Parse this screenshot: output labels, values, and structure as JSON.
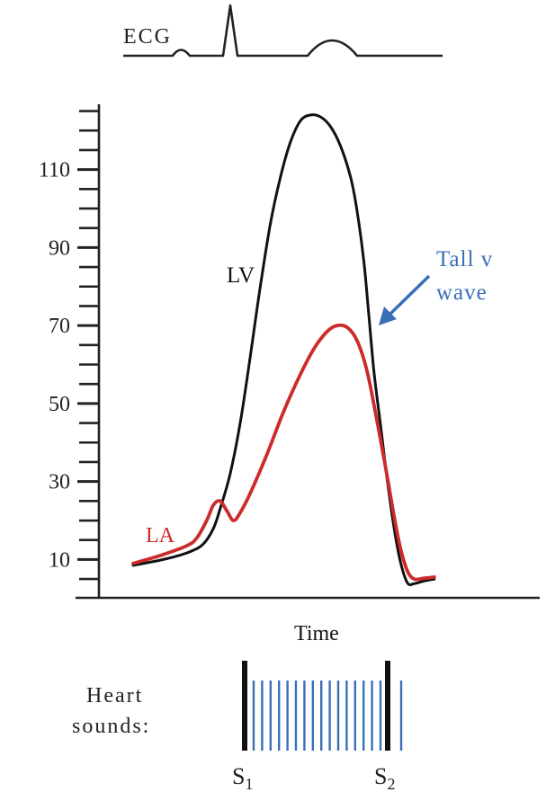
{
  "chart_data": {
    "type": "line",
    "xlabel": "Time",
    "ylabel": "",
    "ylim": [
      0,
      128
    ],
    "xlim": [
      0,
      100
    ],
    "y_ticks": [
      10,
      30,
      50,
      70,
      90,
      110
    ],
    "y_minor_step": 5,
    "grid": false,
    "legend": "none",
    "series": [
      {
        "name": "LV",
        "color": "#111111",
        "points": [
          [
            0,
            8.5
          ],
          [
            10,
            10.2
          ],
          [
            17,
            12
          ],
          [
            21,
            14
          ],
          [
            24,
            18
          ],
          [
            26,
            23
          ],
          [
            29,
            32
          ],
          [
            32,
            45
          ],
          [
            35,
            62
          ],
          [
            38,
            80
          ],
          [
            41,
            96
          ],
          [
            44,
            108
          ],
          [
            47,
            117
          ],
          [
            50,
            122.5
          ],
          [
            53,
            124
          ],
          [
            56,
            123.5
          ],
          [
            59,
            121
          ],
          [
            62,
            116
          ],
          [
            65,
            108
          ],
          [
            67,
            99
          ],
          [
            69,
            86
          ],
          [
            70.5,
            72
          ],
          [
            72,
            58
          ],
          [
            74,
            44
          ],
          [
            76,
            30
          ],
          [
            78,
            18
          ],
          [
            80,
            9
          ],
          [
            82,
            4
          ],
          [
            84,
            3.8
          ],
          [
            87,
            4.5
          ],
          [
            90,
            5
          ]
        ]
      },
      {
        "name": "LA",
        "color": "#cc2b2b",
        "points": [
          [
            0,
            9
          ],
          [
            8,
            11
          ],
          [
            16,
            13.5
          ],
          [
            19,
            15.5
          ],
          [
            22,
            20
          ],
          [
            24,
            24
          ],
          [
            26,
            25
          ],
          [
            28,
            22.5
          ],
          [
            30,
            20
          ],
          [
            32,
            22
          ],
          [
            35,
            27
          ],
          [
            40,
            37
          ],
          [
            45,
            48
          ],
          [
            50,
            57.5
          ],
          [
            54,
            64
          ],
          [
            58,
            68.5
          ],
          [
            61,
            70
          ],
          [
            64,
            69.5
          ],
          [
            67,
            66
          ],
          [
            70,
            58
          ],
          [
            73,
            45
          ],
          [
            76,
            31
          ],
          [
            78,
            21
          ],
          [
            80,
            12.5
          ],
          [
            82,
            7
          ],
          [
            84,
            5
          ],
          [
            87,
            5.2
          ],
          [
            90,
            5.5
          ]
        ]
      }
    ],
    "labels": {
      "ecg": "ECG",
      "lv": "LV",
      "la": "LA",
      "annotation": [
        "Tall v",
        "wave"
      ],
      "heart_sounds": [
        "Heart",
        "sounds:"
      ],
      "s1_base": "S",
      "s1_sub": "1",
      "s2_base": "S",
      "s2_sub": "2"
    },
    "colors": {
      "lv": "#111111",
      "la": "#cc2b2b",
      "annotation": "#3a6fb7",
      "murmur": "#3a6fb7",
      "axis": "#222222"
    }
  }
}
